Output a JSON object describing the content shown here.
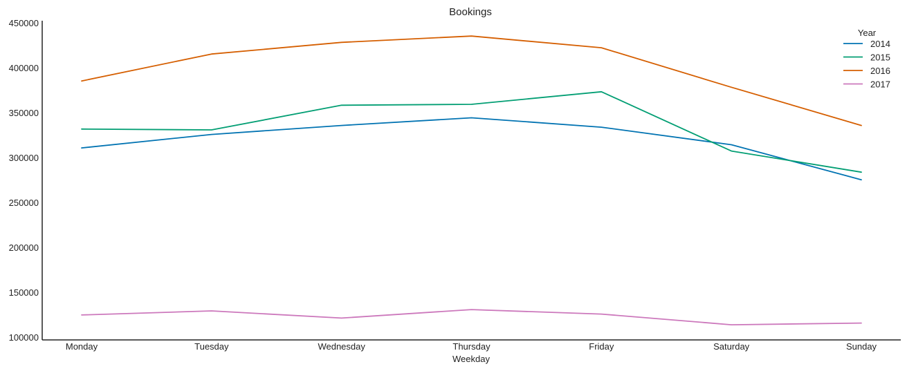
{
  "chart_data": {
    "type": "line",
    "title": "Bookings",
    "xlabel": "Weekday",
    "ylabel": "",
    "categories": [
      "Monday",
      "Tuesday",
      "Wednesday",
      "Thursday",
      "Friday",
      "Saturday",
      "Sunday"
    ],
    "ylim": [
      100000,
      450000
    ],
    "yticks": [
      100000,
      150000,
      200000,
      250000,
      300000,
      350000,
      400000,
      450000
    ],
    "grid": false,
    "legend": {
      "title": "Year",
      "placement": "top-right"
    },
    "series": [
      {
        "name": "2014",
        "color": "#0173b2",
        "values": [
          311500,
          326500,
          336500,
          345000,
          334500,
          315000,
          276000
        ]
      },
      {
        "name": "2015",
        "color": "#029e73",
        "values": [
          332500,
          331500,
          359000,
          360000,
          374000,
          308000,
          284500
        ]
      },
      {
        "name": "2016",
        "color": "#d55e00",
        "values": [
          386000,
          416000,
          429000,
          436000,
          423000,
          379000,
          336500
        ]
      },
      {
        "name": "2017",
        "color": "#cc78bc",
        "values": [
          125500,
          130000,
          122000,
          131500,
          126500,
          114500,
          116500
        ]
      }
    ]
  }
}
